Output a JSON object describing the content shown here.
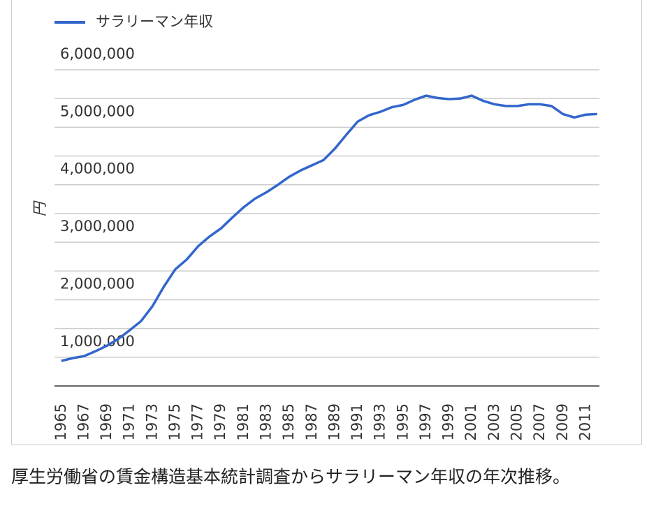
{
  "chart_data": {
    "type": "line",
    "legend_position": "top-left",
    "ylabel": "円",
    "caption": "厚生労働省の賃金構造基本統計調査からサラリーマン年収の年次推移。",
    "x": [
      1965,
      1966,
      1967,
      1968,
      1969,
      1970,
      1971,
      1972,
      1973,
      1974,
      1975,
      1976,
      1977,
      1978,
      1979,
      1980,
      1981,
      1982,
      1983,
      1984,
      1985,
      1986,
      1987,
      1988,
      1989,
      1990,
      1991,
      1992,
      1993,
      1994,
      1995,
      1996,
      1997,
      1998,
      1999,
      2000,
      2001,
      2002,
      2003,
      2004,
      2005,
      2006,
      2007,
      2008,
      2009,
      2010,
      2011,
      2012
    ],
    "series": [
      {
        "name": "サラリーマン年収",
        "color": "#3366cc",
        "values": [
          936000,
          984000,
          1020000,
          1105000,
          1200000,
          1320000,
          1470000,
          1630000,
          1890000,
          2230000,
          2530000,
          2700000,
          2930000,
          3100000,
          3240000,
          3430000,
          3610000,
          3760000,
          3870000,
          4000000,
          4140000,
          4250000,
          4340000,
          4430000,
          4630000,
          4870000,
          5100000,
          5210000,
          5270000,
          5350000,
          5390000,
          5480000,
          5550000,
          5510000,
          5490000,
          5500000,
          5550000,
          5460000,
          5400000,
          5370000,
          5370000,
          5400000,
          5400000,
          5370000,
          5230000,
          5170000,
          5220000,
          5230000
        ]
      }
    ],
    "xlim": [
      1964.4,
      2012.2
    ],
    "xticks": [
      1965,
      1967,
      1969,
      1971,
      1973,
      1975,
      1977,
      1979,
      1981,
      1983,
      1985,
      1987,
      1989,
      1991,
      1993,
      1995,
      1997,
      1999,
      2001,
      2003,
      2005,
      2007,
      2009,
      2011
    ],
    "ylim": [
      500000,
      6000000
    ],
    "yticks": [
      {
        "value": 1000000,
        "label": "1,000,000"
      },
      {
        "value": 2000000,
        "label": "2,000,000"
      },
      {
        "value": 3000000,
        "label": "3,000,000"
      },
      {
        "value": 4000000,
        "label": "4,000,000"
      },
      {
        "value": 5000000,
        "label": "5,000,000"
      },
      {
        "value": 6000000,
        "label": "6,000,000"
      }
    ],
    "minor_yticks": [
      1500000,
      2500000,
      3500000,
      4500000,
      5500000
    ],
    "grid": true
  }
}
